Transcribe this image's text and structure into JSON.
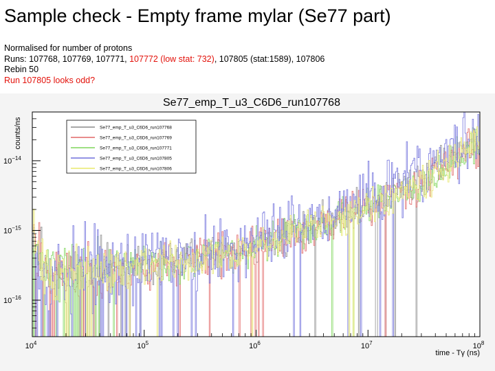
{
  "slide": {
    "title": "Sample check - Empty frame mylar (Se77 part)",
    "line1": "Normalised for number of protons",
    "runs_prefix": "Runs: 107768, 107769, 107771, ",
    "runs_red": "107772 (low stat: 732)",
    "runs_suffix": ", 107805 (stat:1589), 107806",
    "rebin": "Rebin 50",
    "note": "Run 107805 looks odd?"
  },
  "colors": {
    "note_red": "#e3120b"
  },
  "chart_data": {
    "type": "line",
    "title": "Se77_emp_T_u3_C6D6_run107768",
    "xlabel": "time - Tγ (ns)",
    "ylabel": "counts/ns",
    "x_scale": "log",
    "y_scale": "log",
    "xlim": [
      10000,
      100000000
    ],
    "ylim": [
      3e-17,
      5e-14
    ],
    "x_tick_labels": [
      "10",
      "10",
      "10",
      "10",
      "10"
    ],
    "x_tick_exponents": [
      "4",
      "5",
      "6",
      "7",
      "8"
    ],
    "y_tick_labels": [
      "10",
      "10",
      "10"
    ],
    "y_tick_exponents": [
      "−16",
      "−15",
      "−14"
    ],
    "legend_position": "top-left",
    "grid": false,
    "series": [
      {
        "name": "Se77_emp_T_u3_C6D6_run107768",
        "color": "#8a8a8a",
        "seed": 11,
        "noise": 0.28,
        "drop": 0.1,
        "x": [
          10000,
          11000,
          12500,
          15000,
          20000,
          30000,
          50000,
          100000,
          200000,
          500000,
          1000000,
          2000000,
          5000000,
          10000000,
          20000000,
          50000000,
          100000000
        ],
        "y": [
          1.2e-15,
          6e-16,
          3.5e-16,
          2.6e-16,
          2.5e-16,
          2.6e-16,
          2.8e-16,
          3.2e-16,
          3.6e-16,
          4.5e-16,
          6e-16,
          8.5e-16,
          1.5e-15,
          2.4e-15,
          4e-15,
          9e-15,
          1.9e-14
        ]
      },
      {
        "name": "Se77_emp_T_u3_C6D6_run107769",
        "color": "#e06666",
        "seed": 23,
        "noise": 0.3,
        "drop": 0.12,
        "x": [
          10000,
          11000,
          12500,
          15000,
          20000,
          30000,
          50000,
          100000,
          200000,
          500000,
          1000000,
          2000000,
          5000000,
          10000000,
          20000000,
          50000000,
          100000000
        ],
        "y": [
          1.1e-15,
          5.8e-16,
          3.4e-16,
          2.5e-16,
          2.4e-16,
          2.5e-16,
          2.7e-16,
          3.1e-16,
          3.5e-16,
          4.4e-16,
          5.9e-16,
          8.3e-16,
          1.45e-15,
          2.3e-15,
          3.9e-15,
          8.8e-15,
          1.85e-14
        ]
      },
      {
        "name": "Se77_emp_T_u3_C6D6_run107771",
        "color": "#7fd65a",
        "seed": 37,
        "noise": 0.27,
        "drop": 0.08,
        "x": [
          10000,
          11000,
          12500,
          15000,
          20000,
          30000,
          50000,
          100000,
          200000,
          500000,
          1000000,
          2000000,
          5000000,
          10000000,
          20000000,
          50000000,
          100000000
        ],
        "y": [
          1.15e-15,
          5.9e-16,
          3.5e-16,
          2.55e-16,
          2.45e-16,
          2.55e-16,
          2.75e-16,
          3.15e-16,
          3.55e-16,
          4.4e-16,
          5.9e-16,
          8.4e-16,
          1.45e-15,
          2.3e-15,
          3.8e-15,
          8.6e-15,
          1.8e-14
        ]
      },
      {
        "name": "Se77_emp_T_u3_C6D6_run107805",
        "color": "#6f6fdc",
        "seed": 53,
        "noise": 0.45,
        "drop": 0.22,
        "x": [
          10000,
          11000,
          12500,
          15000,
          20000,
          30000,
          50000,
          100000,
          200000,
          500000,
          1000000,
          2000000,
          5000000,
          10000000,
          20000000,
          50000000,
          100000000
        ],
        "y": [
          2e-15,
          7e-16,
          4e-16,
          3e-16,
          2.8e-16,
          2.9e-16,
          3.1e-16,
          3.6e-16,
          4.1e-16,
          5.2e-16,
          7e-16,
          1e-15,
          1.8e-15,
          3e-15,
          5.2e-15,
          1.15e-14,
          2.4e-14
        ]
      },
      {
        "name": "Se77_emp_T_u3_C6D6_run107806",
        "color": "#e8e86a",
        "seed": 71,
        "noise": 0.27,
        "drop": 0.08,
        "x": [
          10000,
          11000,
          12500,
          15000,
          20000,
          30000,
          50000,
          100000,
          200000,
          500000,
          1000000,
          2000000,
          5000000,
          10000000,
          20000000,
          50000000,
          100000000
        ],
        "y": [
          1.1e-15,
          5.7e-16,
          3.4e-16,
          2.5e-16,
          2.4e-16,
          2.5e-16,
          2.7e-16,
          3.1e-16,
          3.5e-16,
          4.3e-16,
          5.8e-16,
          8.2e-16,
          1.4e-15,
          2.25e-15,
          3.7e-15,
          8.5e-15,
          1.75e-14
        ]
      }
    ]
  }
}
